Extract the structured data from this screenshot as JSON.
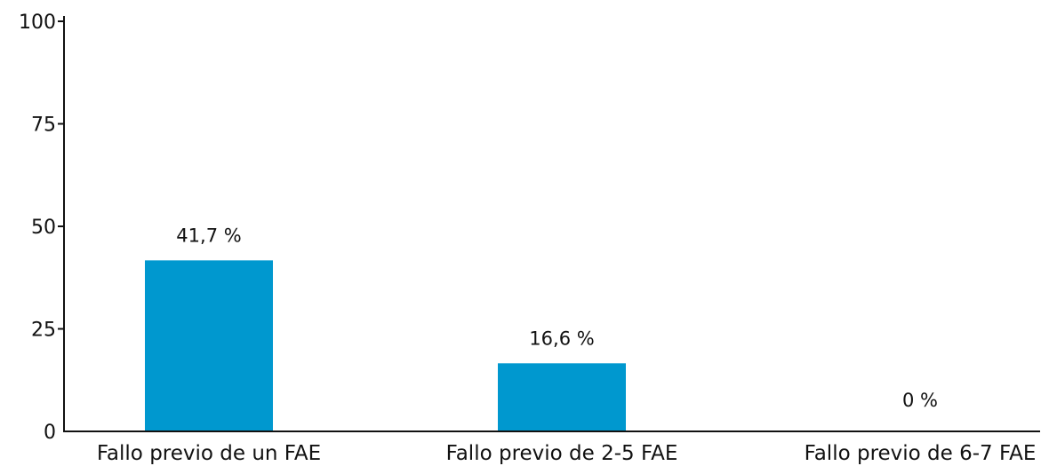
{
  "chart_data": {
    "type": "bar",
    "categories": [
      "Fallo previo de un FAE",
      "Fallo previo de 2-5 FAE",
      "Fallo previo de 6-7 FAE"
    ],
    "values": [
      41.7,
      16.6,
      0
    ],
    "value_labels": [
      "41,7 %",
      "16,6 %",
      "0 %"
    ],
    "title": "",
    "xlabel": "",
    "ylabel": "",
    "ylim": [
      0,
      100
    ],
    "yticks": [
      0,
      25,
      50,
      75,
      100
    ],
    "ytick_labels": [
      "0",
      "25",
      "50",
      "75",
      "100"
    ],
    "grid": false,
    "legend": "none",
    "bar_color": "#0098cf",
    "axis_color": "#111111"
  }
}
